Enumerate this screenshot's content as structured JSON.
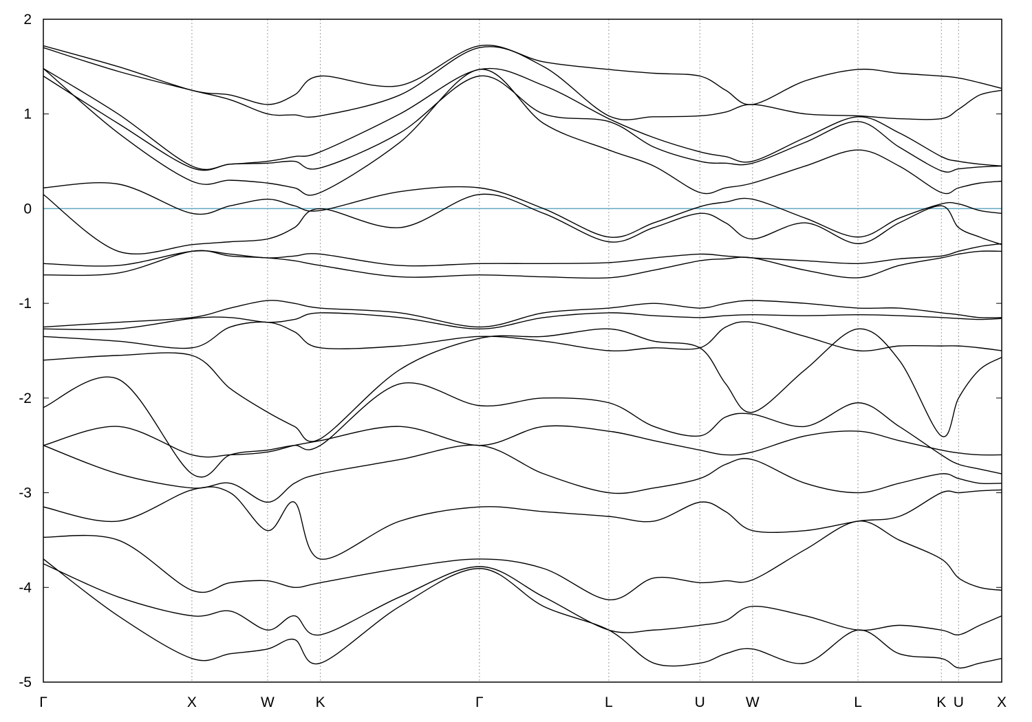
{
  "chart_data": {
    "type": "line",
    "x": [
      0,
      0.078,
      0.155,
      0.195,
      0.234,
      0.262,
      0.289,
      0.372,
      0.455,
      0.522,
      0.59,
      0.637,
      0.685,
      0.712,
      0.74,
      0.795,
      0.85,
      0.893,
      0.937,
      0.955,
      0.977,
      1
    ],
    "xlim": [
      0,
      1
    ],
    "xticks": [
      {
        "value": 0,
        "label": "Γ"
      },
      {
        "value": 0.155,
        "label": "X"
      },
      {
        "value": 0.234,
        "label": "W"
      },
      {
        "value": 0.289,
        "label": "K"
      },
      {
        "value": 0.455,
        "label": "Γ"
      },
      {
        "value": 0.59,
        "label": "L"
      },
      {
        "value": 0.685,
        "label": "U"
      },
      {
        "value": 0.74,
        "label": "W"
      },
      {
        "value": 0.85,
        "label": "L"
      },
      {
        "value": 0.937,
        "label": "K"
      },
      {
        "value": 0.955,
        "label": "U"
      },
      {
        "value": 1,
        "label": "X"
      }
    ],
    "ylim": [
      -5,
      2
    ],
    "yticks": [
      -5,
      -4,
      -3,
      -2,
      -1,
      0,
      1,
      2
    ],
    "color": "#000000",
    "fermi_level": 0,
    "fermi_color": "#5fa8c0",
    "grid": "x",
    "series": [
      {
        "values": [
          1.72,
          1.5,
          1.25,
          1.2,
          1.1,
          1.2,
          1.4,
          1.3,
          1.72,
          1.55,
          1.47,
          1.43,
          1.4,
          1.25,
          1.1,
          1.35,
          1.47,
          1.43,
          1.4,
          1.38,
          1.33,
          1.27
        ]
      },
      {
        "values": [
          1.7,
          1.45,
          1.25,
          1.15,
          1.0,
          0.99,
          0.98,
          1.2,
          1.7,
          1.5,
          0.98,
          0.97,
          0.98,
          1.02,
          1.1,
          1.0,
          0.98,
          0.95,
          0.95,
          1.05,
          1.2,
          1.25
        ]
      },
      {
        "values": [
          1.48,
          1.0,
          0.45,
          0.47,
          0.5,
          0.55,
          0.6,
          1.0,
          1.47,
          1.3,
          0.95,
          0.75,
          0.6,
          0.55,
          0.5,
          0.75,
          0.97,
          0.8,
          0.55,
          0.5,
          0.47,
          0.45
        ]
      },
      {
        "values": [
          1.4,
          0.9,
          0.43,
          0.47,
          0.48,
          0.5,
          0.43,
          0.8,
          1.4,
          1.0,
          0.92,
          0.65,
          0.5,
          0.48,
          0.48,
          0.7,
          0.92,
          0.65,
          0.4,
          0.42,
          0.44,
          0.45
        ]
      },
      {
        "values": [
          1.48,
          0.8,
          0.29,
          0.3,
          0.27,
          0.22,
          0.17,
          0.7,
          1.47,
          0.9,
          0.62,
          0.45,
          0.17,
          0.22,
          0.27,
          0.45,
          0.62,
          0.45,
          0.17,
          0.22,
          0.27,
          0.29
        ]
      },
      {
        "values": [
          0.22,
          0.26,
          -0.05,
          0.03,
          0.1,
          0.03,
          -0.02,
          0.18,
          0.22,
          0.0,
          -0.3,
          -0.15,
          0.02,
          0.07,
          0.1,
          -0.1,
          -0.3,
          -0.1,
          0.05,
          0.05,
          -0.02,
          -0.05
        ]
      },
      {
        "values": [
          0.15,
          -0.45,
          -0.38,
          -0.35,
          -0.32,
          -0.2,
          0.0,
          -0.2,
          0.15,
          -0.05,
          -0.35,
          -0.2,
          -0.05,
          -0.15,
          -0.32,
          -0.15,
          -0.37,
          -0.15,
          0.03,
          -0.2,
          -0.3,
          -0.38
        ]
      },
      {
        "values": [
          -0.58,
          -0.6,
          -0.45,
          -0.48,
          -0.52,
          -0.5,
          -0.48,
          -0.6,
          -0.58,
          -0.58,
          -0.57,
          -0.52,
          -0.48,
          -0.5,
          -0.52,
          -0.55,
          -0.58,
          -0.53,
          -0.5,
          -0.45,
          -0.4,
          -0.37
        ]
      },
      {
        "values": [
          -0.7,
          -0.68,
          -0.45,
          -0.5,
          -0.52,
          -0.55,
          -0.6,
          -0.72,
          -0.7,
          -0.72,
          -0.73,
          -0.65,
          -0.55,
          -0.53,
          -0.52,
          -0.65,
          -0.73,
          -0.6,
          -0.52,
          -0.48,
          -0.45,
          -0.45
        ]
      },
      {
        "values": [
          -1.25,
          -1.2,
          -1.15,
          -1.05,
          -0.97,
          -1.0,
          -1.05,
          -1.1,
          -1.25,
          -1.1,
          -1.05,
          -1.0,
          -1.05,
          -1.0,
          -0.97,
          -1.0,
          -1.05,
          -1.05,
          -1.1,
          -1.12,
          -1.15,
          -1.15
        ]
      },
      {
        "values": [
          -1.27,
          -1.27,
          -1.16,
          -1.15,
          -1.2,
          -1.17,
          -1.1,
          -1.15,
          -1.27,
          -1.15,
          -1.1,
          -1.13,
          -1.15,
          -1.13,
          -1.12,
          -1.13,
          -1.12,
          -1.13,
          -1.15,
          -1.16,
          -1.17,
          -1.16
        ]
      },
      {
        "values": [
          -1.35,
          -1.4,
          -1.47,
          -1.25,
          -1.2,
          -1.3,
          -1.47,
          -1.45,
          -1.35,
          -1.4,
          -1.5,
          -1.47,
          -1.47,
          -1.25,
          -1.2,
          -1.35,
          -1.5,
          -1.45,
          -1.45,
          -1.45,
          -1.47,
          -1.5
        ]
      },
      {
        "values": [
          -1.6,
          -1.55,
          -1.55,
          -1.9,
          -2.15,
          -2.3,
          -2.43,
          -1.7,
          -1.37,
          -1.35,
          -1.27,
          -1.4,
          -1.47,
          -1.85,
          -2.15,
          -1.7,
          -1.27,
          -1.6,
          -2.4,
          -2.0,
          -1.7,
          -1.57
        ]
      },
      {
        "values": [
          -2.1,
          -1.8,
          -2.8,
          -2.6,
          -2.55,
          -2.5,
          -2.5,
          -1.85,
          -2.08,
          -2.0,
          -2.05,
          -2.3,
          -2.4,
          -2.2,
          -2.17,
          -2.3,
          -2.05,
          -2.3,
          -2.6,
          -2.7,
          -2.75,
          -2.8
        ]
      },
      {
        "values": [
          -2.5,
          -2.3,
          -2.6,
          -2.6,
          -2.57,
          -2.5,
          -2.45,
          -2.3,
          -2.5,
          -2.3,
          -2.35,
          -2.45,
          -2.55,
          -2.6,
          -2.57,
          -2.4,
          -2.35,
          -2.45,
          -2.55,
          -2.58,
          -2.6,
          -2.6
        ]
      },
      {
        "values": [
          -2.5,
          -2.8,
          -2.95,
          -2.9,
          -3.1,
          -2.9,
          -2.8,
          -2.65,
          -2.5,
          -2.8,
          -3.0,
          -2.95,
          -2.85,
          -2.7,
          -2.65,
          -2.9,
          -3.0,
          -2.9,
          -2.8,
          -2.85,
          -2.9,
          -2.9
        ]
      },
      {
        "values": [
          -3.15,
          -3.3,
          -2.97,
          -3.0,
          -3.4,
          -3.1,
          -3.7,
          -3.3,
          -3.15,
          -3.2,
          -3.25,
          -3.3,
          -3.1,
          -3.2,
          -3.4,
          -3.4,
          -3.3,
          -3.25,
          -3.0,
          -3.0,
          -2.98,
          -2.97
        ]
      },
      {
        "values": [
          -3.47,
          -3.5,
          -4.03,
          -3.95,
          -3.93,
          -4.0,
          -3.95,
          -3.8,
          -3.7,
          -3.8,
          -4.13,
          -3.9,
          -3.95,
          -3.93,
          -3.92,
          -3.6,
          -3.3,
          -3.5,
          -3.7,
          -3.9,
          -4.0,
          -4.03
        ]
      },
      {
        "values": [
          -3.75,
          -4.1,
          -4.3,
          -4.25,
          -4.45,
          -4.3,
          -4.5,
          -4.1,
          -3.78,
          -4.1,
          -4.45,
          -4.45,
          -4.4,
          -4.35,
          -4.2,
          -4.3,
          -4.45,
          -4.4,
          -4.45,
          -4.5,
          -4.4,
          -4.3
        ]
      },
      {
        "values": [
          -3.7,
          -4.3,
          -4.75,
          -4.7,
          -4.65,
          -4.55,
          -4.8,
          -4.2,
          -3.8,
          -4.2,
          -4.45,
          -4.8,
          -4.8,
          -4.7,
          -4.65,
          -4.8,
          -4.45,
          -4.7,
          -4.75,
          -4.85,
          -4.8,
          -4.75
        ]
      }
    ]
  }
}
